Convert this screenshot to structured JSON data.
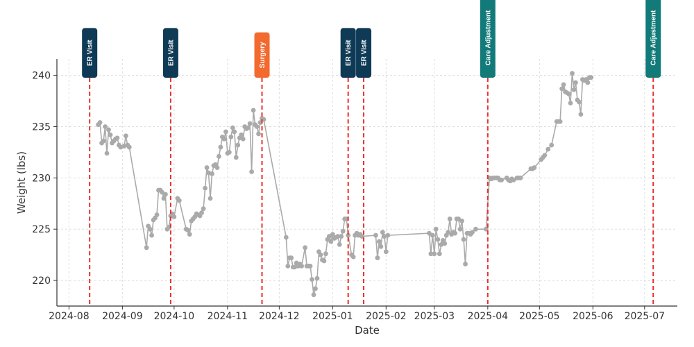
{
  "chart_data": {
    "type": "line",
    "title": "",
    "xlabel": "Date",
    "ylabel": "Weight (lbs)",
    "grid": true,
    "xlim": [
      "2024-07-25",
      "2025-07-20"
    ],
    "ylim": [
      217.5,
      241.6
    ],
    "y_ticks": [
      220,
      225,
      230,
      235,
      240
    ],
    "x_ticks": [
      {
        "date": "2024-08-01",
        "label": "2024-08"
      },
      {
        "date": "2024-09-01",
        "label": "2024-09"
      },
      {
        "date": "2024-10-01",
        "label": "2024-10"
      },
      {
        "date": "2024-11-01",
        "label": "2024-11"
      },
      {
        "date": "2024-12-01",
        "label": "2024-12"
      },
      {
        "date": "2025-01-01",
        "label": "2025-01"
      },
      {
        "date": "2025-02-01",
        "label": "2025-02"
      },
      {
        "date": "2025-03-01",
        "label": "2025-03"
      },
      {
        "date": "2025-04-01",
        "label": "2025-04"
      },
      {
        "date": "2025-05-01",
        "label": "2025-05"
      },
      {
        "date": "2025-06-01",
        "label": "2025-06"
      },
      {
        "date": "2025-07-01",
        "label": "2025-07"
      }
    ],
    "series": [
      {
        "color": "#aaaaaa",
        "points": [
          [
            "2024-08-18",
            235.2
          ],
          [
            "2024-08-19",
            235.4
          ],
          [
            "2024-08-20",
            233.4
          ],
          [
            "2024-08-21",
            233.6
          ],
          [
            "2024-08-22",
            235.0
          ],
          [
            "2024-08-23",
            232.4
          ],
          [
            "2024-08-24",
            234.7
          ],
          [
            "2024-08-25",
            234.2
          ],
          [
            "2024-08-26",
            233.4
          ],
          [
            "2024-08-27",
            233.6
          ],
          [
            "2024-08-28",
            233.8
          ],
          [
            "2024-08-29",
            233.9
          ],
          [
            "2024-08-30",
            233.2
          ],
          [
            "2024-08-31",
            233.0
          ],
          [
            "2024-09-02",
            233.1
          ],
          [
            "2024-09-03",
            234.1
          ],
          [
            "2024-09-04",
            233.2
          ],
          [
            "2024-09-05",
            233.0
          ],
          [
            "2024-09-15",
            223.2
          ],
          [
            "2024-09-16",
            225.3
          ],
          [
            "2024-09-17",
            225.0
          ],
          [
            "2024-09-18",
            224.4
          ],
          [
            "2024-09-19",
            225.9
          ],
          [
            "2024-09-20",
            226.1
          ],
          [
            "2024-09-21",
            226.4
          ],
          [
            "2024-09-22",
            228.8
          ],
          [
            "2024-09-23",
            228.8
          ],
          [
            "2024-09-24",
            228.6
          ],
          [
            "2024-09-25",
            228.0
          ],
          [
            "2024-09-26",
            228.4
          ],
          [
            "2024-09-27",
            225.0
          ],
          [
            "2024-09-28",
            225.2
          ],
          [
            "2024-09-29",
            226.3
          ],
          [
            "2024-09-30",
            226.5
          ],
          [
            "2024-10-01",
            226.2
          ],
          [
            "2024-10-03",
            228.0
          ],
          [
            "2024-10-04",
            227.8
          ],
          [
            "2024-10-08",
            225.0
          ],
          [
            "2024-10-09",
            224.9
          ],
          [
            "2024-10-10",
            224.5
          ],
          [
            "2024-10-11",
            225.8
          ],
          [
            "2024-10-12",
            226.0
          ],
          [
            "2024-10-13",
            226.2
          ],
          [
            "2024-10-14",
            226.5
          ],
          [
            "2024-10-15",
            226.4
          ],
          [
            "2024-10-16",
            226.3
          ],
          [
            "2024-10-17",
            226.6
          ],
          [
            "2024-10-18",
            227.0
          ],
          [
            "2024-10-19",
            229.0
          ],
          [
            "2024-10-20",
            231.0
          ],
          [
            "2024-10-21",
            230.5
          ],
          [
            "2024-10-22",
            228.0
          ],
          [
            "2024-10-23",
            230.4
          ],
          [
            "2024-10-24",
            231.2
          ],
          [
            "2024-10-25",
            231.3
          ],
          [
            "2024-10-26",
            231.0
          ],
          [
            "2024-10-27",
            232.1
          ],
          [
            "2024-10-28",
            233.0
          ],
          [
            "2024-10-29",
            234.0
          ],
          [
            "2024-10-30",
            233.8
          ],
          [
            "2024-10-31",
            234.5
          ],
          [
            "2024-11-01",
            232.4
          ],
          [
            "2024-11-02",
            232.5
          ],
          [
            "2024-11-03",
            234.0
          ],
          [
            "2024-11-04",
            234.9
          ],
          [
            "2024-11-05",
            234.5
          ],
          [
            "2024-11-06",
            232.0
          ],
          [
            "2024-11-07",
            233.2
          ],
          [
            "2024-11-08",
            233.9
          ],
          [
            "2024-11-09",
            234.2
          ],
          [
            "2024-11-10",
            233.8
          ],
          [
            "2024-11-11",
            235.0
          ],
          [
            "2024-11-12",
            234.8
          ],
          [
            "2024-11-13",
            234.9
          ],
          [
            "2024-11-14",
            235.3
          ],
          [
            "2024-11-15",
            230.6
          ],
          [
            "2024-11-16",
            236.6
          ],
          [
            "2024-11-17",
            235.2
          ],
          [
            "2024-11-18",
            235.0
          ],
          [
            "2024-11-19",
            234.3
          ],
          [
            "2024-11-20",
            235.4
          ],
          [
            "2024-11-21",
            235.8
          ],
          [
            "2024-11-22",
            235.7
          ],
          [
            "2024-12-05",
            224.2
          ],
          [
            "2024-12-06",
            221.4
          ],
          [
            "2024-12-07",
            222.2
          ],
          [
            "2024-12-08",
            222.2
          ],
          [
            "2024-12-09",
            221.3
          ],
          [
            "2024-12-10",
            221.3
          ],
          [
            "2024-12-11",
            221.7
          ],
          [
            "2024-12-12",
            221.4
          ],
          [
            "2024-12-13",
            221.6
          ],
          [
            "2024-12-14",
            221.4
          ],
          [
            "2024-12-16",
            223.2
          ],
          [
            "2024-12-17",
            221.4
          ],
          [
            "2024-12-18",
            221.4
          ],
          [
            "2024-12-19",
            221.4
          ],
          [
            "2024-12-20",
            220.1
          ],
          [
            "2024-12-21",
            218.6
          ],
          [
            "2024-12-22",
            219.2
          ],
          [
            "2024-12-23",
            220.2
          ],
          [
            "2024-12-24",
            222.8
          ],
          [
            "2024-12-25",
            222.5
          ],
          [
            "2024-12-26",
            222.0
          ],
          [
            "2024-12-27",
            221.9
          ],
          [
            "2024-12-28",
            222.6
          ],
          [
            "2024-12-29",
            224.0
          ],
          [
            "2024-12-30",
            224.3
          ],
          [
            "2024-12-31",
            223.8
          ],
          [
            "2025-01-01",
            224.5
          ],
          [
            "2025-01-02",
            224.1
          ],
          [
            "2025-01-03",
            224.2
          ],
          [
            "2025-01-04",
            224.3
          ],
          [
            "2025-01-05",
            223.5
          ],
          [
            "2025-01-06",
            224.3
          ],
          [
            "2025-01-07",
            224.8
          ],
          [
            "2025-01-08",
            226.0
          ],
          [
            "2025-01-09",
            226.0
          ],
          [
            "2025-01-10",
            224.4
          ],
          [
            "2025-01-12",
            222.5
          ],
          [
            "2025-01-13",
            222.3
          ],
          [
            "2025-01-14",
            224.4
          ],
          [
            "2025-01-15",
            224.6
          ],
          [
            "2025-01-16",
            224.4
          ],
          [
            "2025-01-17",
            224.5
          ],
          [
            "2025-01-18",
            224.3
          ],
          [
            "2025-01-26",
            224.4
          ],
          [
            "2025-01-27",
            222.2
          ],
          [
            "2025-01-28",
            223.8
          ],
          [
            "2025-01-29",
            223.3
          ],
          [
            "2025-01-30",
            224.7
          ],
          [
            "2025-01-31",
            224.3
          ],
          [
            "2025-02-01",
            222.8
          ],
          [
            "2025-02-02",
            224.4
          ],
          [
            "2025-02-26",
            224.6
          ],
          [
            "2025-02-27",
            222.6
          ],
          [
            "2025-02-28",
            224.4
          ],
          [
            "2025-03-01",
            222.6
          ],
          [
            "2025-03-02",
            225.0
          ],
          [
            "2025-03-03",
            224.0
          ],
          [
            "2025-03-04",
            222.6
          ],
          [
            "2025-03-05",
            223.5
          ],
          [
            "2025-03-06",
            223.9
          ],
          [
            "2025-03-07",
            223.6
          ],
          [
            "2025-03-08",
            224.4
          ],
          [
            "2025-03-09",
            224.7
          ],
          [
            "2025-03-10",
            226.0
          ],
          [
            "2025-03-11",
            224.5
          ],
          [
            "2025-03-12",
            224.7
          ],
          [
            "2025-03-13",
            224.6
          ],
          [
            "2025-03-14",
            226.0
          ],
          [
            "2025-03-15",
            226.0
          ],
          [
            "2025-03-16",
            225.0
          ],
          [
            "2025-03-17",
            225.8
          ],
          [
            "2025-03-18",
            224.0
          ],
          [
            "2025-03-19",
            221.6
          ],
          [
            "2025-03-20",
            224.6
          ],
          [
            "2025-03-21",
            224.6
          ],
          [
            "2025-03-22",
            224.5
          ],
          [
            "2025-03-23",
            224.7
          ],
          [
            "2025-03-25",
            225.0
          ],
          [
            "2025-03-31",
            225.0
          ],
          [
            "2025-04-02",
            230.0
          ],
          [
            "2025-04-03",
            229.9
          ],
          [
            "2025-04-04",
            230.0
          ],
          [
            "2025-04-05",
            230.0
          ],
          [
            "2025-04-06",
            230.0
          ],
          [
            "2025-04-07",
            230.0
          ],
          [
            "2025-04-08",
            229.8
          ],
          [
            "2025-04-09",
            229.8
          ],
          [
            "2025-04-12",
            230.0
          ],
          [
            "2025-04-13",
            229.8
          ],
          [
            "2025-04-14",
            229.7
          ],
          [
            "2025-04-15",
            229.9
          ],
          [
            "2025-04-16",
            229.8
          ],
          [
            "2025-04-18",
            230.0
          ],
          [
            "2025-04-19",
            230.0
          ],
          [
            "2025-04-20",
            230.0
          ],
          [
            "2025-04-26",
            230.9
          ],
          [
            "2025-04-27",
            230.9
          ],
          [
            "2025-04-28",
            231.0
          ],
          [
            "2025-05-02",
            231.8
          ],
          [
            "2025-05-03",
            232.0
          ],
          [
            "2025-05-04",
            232.2
          ],
          [
            "2025-05-06",
            232.8
          ],
          [
            "2025-05-08",
            233.2
          ],
          [
            "2025-05-11",
            235.5
          ],
          [
            "2025-05-12",
            235.5
          ],
          [
            "2025-05-13",
            235.5
          ],
          [
            "2025-05-14",
            238.7
          ],
          [
            "2025-05-15",
            239.1
          ],
          [
            "2025-05-16",
            238.4
          ],
          [
            "2025-05-17",
            238.3
          ],
          [
            "2025-05-18",
            238.2
          ],
          [
            "2025-05-19",
            237.3
          ],
          [
            "2025-05-20",
            240.2
          ],
          [
            "2025-05-21",
            238.6
          ],
          [
            "2025-05-22",
            239.3
          ],
          [
            "2025-05-23",
            237.6
          ],
          [
            "2025-05-24",
            237.4
          ],
          [
            "2025-05-25",
            236.2
          ],
          [
            "2025-05-26",
            239.6
          ],
          [
            "2025-05-27",
            239.5
          ],
          [
            "2025-05-28",
            239.6
          ],
          [
            "2025-05-29",
            239.3
          ],
          [
            "2025-05-30",
            239.8
          ],
          [
            "2025-05-31",
            239.8
          ]
        ]
      }
    ],
    "events": [
      {
        "date": "2024-08-13",
        "label": "ER Visit",
        "color": "#0e3a56"
      },
      {
        "date": "2024-09-29",
        "label": "ER Visit",
        "color": "#0e3a56"
      },
      {
        "date": "2024-11-21",
        "label": "Surgery",
        "color": "#f26a2e"
      },
      {
        "date": "2025-01-10",
        "label": "ER Visit",
        "color": "#0e3a56"
      },
      {
        "date": "2025-01-19",
        "label": "ER Visit",
        "color": "#0e3a56"
      },
      {
        "date": "2025-04-01",
        "label": "Care Adjustment",
        "color": "#137a7a"
      },
      {
        "date": "2025-07-06",
        "label": "Care Adjustment",
        "color": "#137a7a"
      }
    ],
    "event_line_color": "#e83030",
    "grid_color": "#dddddd",
    "axis_color": "#333333"
  }
}
